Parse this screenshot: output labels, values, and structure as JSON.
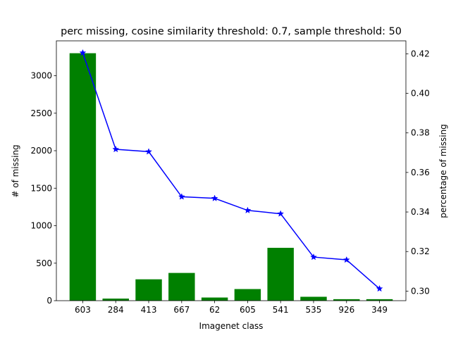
{
  "chart_data": {
    "type": "bar",
    "title": "perc missing, cosine similarity threshold: 0.7, sample threshold: 50",
    "xlabel": "Imagenet class",
    "ylabel": "# of missing",
    "y2label": "percentage of missing",
    "categories": [
      "603",
      "284",
      "413",
      "667",
      "62",
      "605",
      "541",
      "535",
      "926",
      "349"
    ],
    "series": [
      {
        "axis": "left",
        "kind": "bar",
        "color": "#008000",
        "values": [
          3300,
          28,
          285,
          370,
          42,
          155,
          705,
          52,
          20,
          20
        ]
      },
      {
        "axis": "right",
        "kind": "line",
        "marker": "star",
        "color": "#0000ff",
        "values": [
          0.4205,
          0.3717,
          0.3705,
          0.3477,
          0.3469,
          0.3408,
          0.3391,
          0.3172,
          0.3158,
          0.3012
        ]
      }
    ],
    "ylim": [
      0,
      3465
    ],
    "y2lim": [
      0.29515,
      0.42655
    ],
    "yticks": [
      0,
      500,
      1000,
      1500,
      2000,
      2500,
      3000
    ],
    "y2ticks": [
      0.3,
      0.32,
      0.34,
      0.36,
      0.38,
      0.4,
      0.42
    ],
    "y2tick_labels": [
      "0.30",
      "0.32",
      "0.34",
      "0.36",
      "0.38",
      "0.40",
      "0.42"
    ],
    "grid": false,
    "legend": "none"
  }
}
